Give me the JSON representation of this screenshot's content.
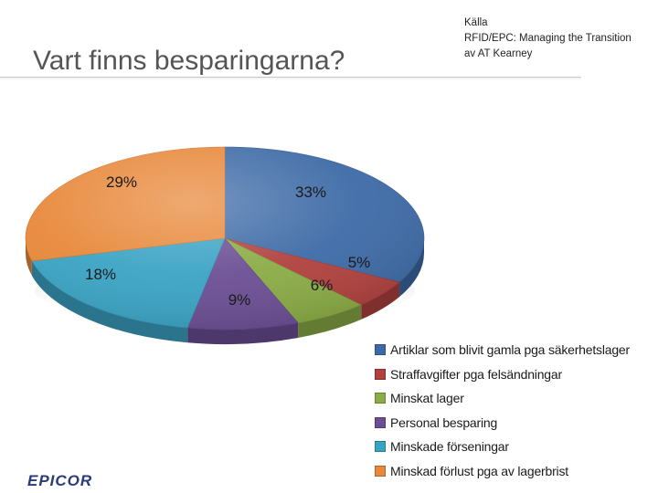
{
  "slide": {
    "title": "Vart finns besparingarna?",
    "source_lines": [
      "Källa",
      "RFID/EPC: Managing the Transition",
      "av AT Kearney"
    ],
    "logo_text": "EPICOR"
  },
  "colors": {
    "title_text": "#555555",
    "logo": "#2a3a7a"
  },
  "chart_data": {
    "type": "pie",
    "title": "",
    "start_direction": "12 o'clock, clockwise",
    "legend_position": "bottom-right",
    "slices": [
      {
        "label": "Artiklar som blivit gamla pga säkerhetslager",
        "value": 33,
        "value_label": "33%",
        "color": "#3d6aa6"
      },
      {
        "label": "Straffavgifter pga felsändningar",
        "value": 5,
        "value_label": "5%",
        "color": "#b0413e"
      },
      {
        "label": "Minskat lager",
        "value": 6,
        "value_label": "6%",
        "color": "#8aab45"
      },
      {
        "label": "Personal besparing",
        "value": 9,
        "value_label": "9%",
        "color": "#6b4e94"
      },
      {
        "label": "Minskade förseningar",
        "value": 18,
        "value_label": "18%",
        "color": "#3aa3c4"
      },
      {
        "label": "Minskad förlust pga av lagerbrist",
        "value": 29,
        "value_label": "29%",
        "color": "#e8883a"
      }
    ]
  }
}
